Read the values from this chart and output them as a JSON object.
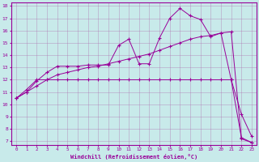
{
  "xlabel": "Windchill (Refroidissement éolien,°C)",
  "background_color": "#c8eaea",
  "line_color": "#990099",
  "grid_color": "#aa66aa",
  "xmin": 0,
  "xmax": 23,
  "ymin": 7,
  "ymax": 18,
  "line1_x": [
    0,
    1,
    2,
    3,
    4,
    5,
    6,
    7,
    8,
    9,
    10,
    11,
    12,
    13,
    14,
    15,
    16,
    17,
    18,
    19,
    20,
    21,
    22,
    23
  ],
  "line1_y": [
    10.5,
    11.0,
    11.9,
    12.6,
    13.1,
    13.1,
    13.1,
    13.2,
    13.2,
    13.2,
    14.8,
    15.3,
    13.3,
    13.3,
    15.4,
    17.0,
    17.8,
    17.2,
    16.9,
    15.5,
    15.8,
    12.0,
    9.2,
    7.4
  ],
  "line2_x": [
    0,
    1,
    2,
    3,
    4,
    5,
    6,
    7,
    8,
    9,
    10,
    11,
    12,
    13,
    14,
    15,
    16,
    17,
    18,
    19,
    20,
    21,
    22,
    23
  ],
  "line2_y": [
    10.5,
    11.2,
    12.0,
    12.0,
    12.0,
    12.0,
    12.0,
    12.0,
    12.0,
    12.0,
    12.0,
    12.0,
    12.0,
    12.0,
    12.0,
    12.0,
    12.0,
    12.0,
    12.0,
    12.0,
    12.0,
    12.0,
    7.3,
    6.9
  ],
  "line3_x": [
    0,
    1,
    2,
    3,
    4,
    5,
    6,
    7,
    8,
    9,
    10,
    11,
    12,
    13,
    14,
    15,
    16,
    17,
    18,
    19,
    20,
    21,
    22,
    23
  ],
  "line3_y": [
    10.5,
    11.0,
    11.5,
    12.0,
    12.4,
    12.6,
    12.8,
    13.0,
    13.1,
    13.3,
    13.5,
    13.7,
    13.9,
    14.1,
    14.4,
    14.7,
    15.0,
    15.3,
    15.5,
    15.6,
    15.8,
    15.9,
    7.2,
    6.9
  ]
}
